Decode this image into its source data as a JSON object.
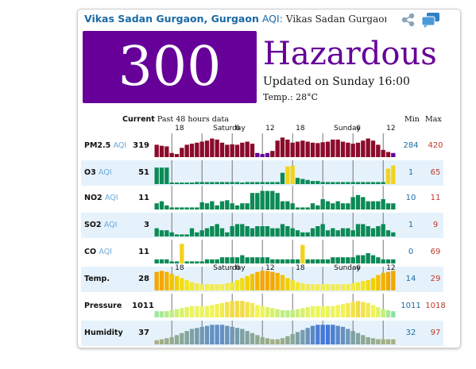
{
  "header": {
    "station": "Vikas Sadan Gurgaon, Gurgaon",
    "aqi_suffix": "AQI",
    "colon": ":",
    "subtitle": "Vikas Sadan Gurgaon, Gu"
  },
  "icons": {
    "share": "share-icon",
    "chat": "chat-icon"
  },
  "summary": {
    "aqi": "300",
    "level": "Hazardous",
    "updated": "Updated on Sunday 16:00",
    "temp_label": "Temp.:",
    "temp_value": "28°C",
    "aqi_color": "#660099"
  },
  "table_header": {
    "current": "Current",
    "past": "Past 48 hours data",
    "min": "Min",
    "max": "Max"
  },
  "time_axis": [
    "18",
    "Saturday",
    "6",
    "12",
    "18",
    "Sunday",
    "6",
    "12"
  ],
  "rows": [
    {
      "name": "PM2.5",
      "unit": "AQI",
      "current": "319",
      "min": "284",
      "max": "420",
      "values": [
        60,
        55,
        52,
        20,
        15,
        45,
        60,
        65,
        70,
        75,
        80,
        90,
        85,
        70,
        60,
        62,
        60,
        70,
        75,
        65,
        20,
        15,
        20,
        30,
        80,
        95,
        85,
        70,
        75,
        80,
        75,
        70,
        68,
        72,
        75,
        85,
        85,
        75,
        70,
        65,
        70,
        80,
        90,
        80,
        60,
        35,
        25,
        20
      ],
      "colors": [
        "#8b0a2a",
        "#8b0a2a",
        "#8b0a2a",
        "#8b0a2a",
        "#8b0a2a",
        "#8b0a2a",
        "#8b0a2a",
        "#8b0a2a",
        "#8b0a2a",
        "#8b0a2a",
        "#8b0a2a",
        "#8b0a2a",
        "#8b0a2a",
        "#8b0a2a",
        "#8b0a2a",
        "#8b0a2a",
        "#8b0a2a",
        "#8b0a2a",
        "#8b0a2a",
        "#8b0a2a",
        "#660099",
        "#660099",
        "#660099",
        "#8b0a2a",
        "#8b0a2a",
        "#8b0a2a",
        "#8b0a2a",
        "#8b0a2a",
        "#8b0a2a",
        "#8b0a2a",
        "#8b0a2a",
        "#8b0a2a",
        "#8b0a2a",
        "#8b0a2a",
        "#8b0a2a",
        "#8b0a2a",
        "#8b0a2a",
        "#8b0a2a",
        "#8b0a2a",
        "#8b0a2a",
        "#8b0a2a",
        "#8b0a2a",
        "#8b0a2a",
        "#8b0a2a",
        "#8b0a2a",
        "#8b0a2a",
        "#8b0a2a",
        "#660099"
      ]
    },
    {
      "name": "O3",
      "unit": "AQI",
      "current": "51",
      "min": "1",
      "max": "65",
      "values": [
        80,
        80,
        80,
        5,
        5,
        5,
        5,
        5,
        10,
        10,
        10,
        10,
        10,
        10,
        10,
        10,
        10,
        5,
        10,
        10,
        10,
        10,
        10,
        10,
        10,
        55,
        85,
        90,
        30,
        25,
        20,
        15,
        15,
        10,
        10,
        10,
        10,
        10,
        10,
        10,
        10,
        10,
        10,
        10,
        10,
        10,
        75,
        90
      ],
      "colors": [
        "#0b8a55",
        "#0b8a55",
        "#0b8a55",
        "#0b8a55",
        "#0b8a55",
        "#0b8a55",
        "#0b8a55",
        "#0b8a55",
        "#0b8a55",
        "#0b8a55",
        "#0b8a55",
        "#0b8a55",
        "#0b8a55",
        "#0b8a55",
        "#0b8a55",
        "#0b8a55",
        "#0b8a55",
        "#0b8a55",
        "#0b8a55",
        "#0b8a55",
        "#0b8a55",
        "#0b8a55",
        "#0b8a55",
        "#0b8a55",
        "#0b8a55",
        "#0b8a55",
        "#f2d31c",
        "#f2d31c",
        "#0b8a55",
        "#0b8a55",
        "#0b8a55",
        "#0b8a55",
        "#0b8a55",
        "#0b8a55",
        "#0b8a55",
        "#0b8a55",
        "#0b8a55",
        "#0b8a55",
        "#0b8a55",
        "#0b8a55",
        "#0b8a55",
        "#0b8a55",
        "#0b8a55",
        "#0b8a55",
        "#0b8a55",
        "#0b8a55",
        "#f2d31c",
        "#f2d31c"
      ]
    },
    {
      "name": "NO2",
      "unit": "AQI",
      "current": "11",
      "min": "10",
      "max": "11",
      "values": [
        30,
        40,
        20,
        10,
        10,
        10,
        10,
        10,
        10,
        35,
        30,
        40,
        20,
        40,
        45,
        30,
        20,
        30,
        30,
        80,
        80,
        90,
        90,
        90,
        80,
        40,
        40,
        30,
        10,
        10,
        10,
        30,
        20,
        50,
        40,
        30,
        40,
        30,
        30,
        60,
        70,
        60,
        40,
        40,
        40,
        50,
        30,
        30
      ],
      "colors": [
        "#0b8a55"
      ]
    },
    {
      "name": "SO2",
      "unit": "AQI",
      "current": "3",
      "min": "1",
      "max": "9",
      "values": [
        40,
        30,
        30,
        20,
        10,
        10,
        10,
        40,
        20,
        30,
        40,
        50,
        60,
        40,
        20,
        50,
        60,
        60,
        50,
        40,
        50,
        50,
        50,
        40,
        40,
        60,
        50,
        40,
        30,
        20,
        20,
        40,
        50,
        60,
        30,
        40,
        30,
        40,
        40,
        30,
        60,
        60,
        50,
        40,
        50,
        60,
        30,
        20
      ],
      "colors": [
        "#0b8a55"
      ]
    },
    {
      "name": "CO",
      "unit": "AQI",
      "current": "11",
      "min": "0",
      "max": "69",
      "values": [
        20,
        20,
        20,
        10,
        10,
        95,
        10,
        10,
        10,
        10,
        20,
        20,
        20,
        30,
        30,
        30,
        30,
        40,
        30,
        30,
        30,
        30,
        30,
        20,
        20,
        20,
        20,
        20,
        20,
        90,
        20,
        20,
        20,
        20,
        20,
        30,
        30,
        30,
        30,
        30,
        40,
        40,
        50,
        40,
        30,
        20,
        20,
        20
      ],
      "colors": [
        "#0b8a55",
        "#0b8a55",
        "#0b8a55",
        "#0b8a55",
        "#0b8a55",
        "#f2d31c",
        "#0b8a55",
        "#0b8a55",
        "#0b8a55",
        "#0b8a55",
        "#0b8a55",
        "#0b8a55",
        "#0b8a55",
        "#0b8a55",
        "#0b8a55",
        "#0b8a55",
        "#0b8a55",
        "#0b8a55",
        "#0b8a55",
        "#0b8a55",
        "#0b8a55",
        "#0b8a55",
        "#0b8a55",
        "#0b8a55",
        "#0b8a55",
        "#0b8a55",
        "#0b8a55",
        "#0b8a55",
        "#0b8a55",
        "#f2d31c",
        "#0b8a55",
        "#0b8a55",
        "#0b8a55",
        "#0b8a55",
        "#0b8a55",
        "#0b8a55",
        "#0b8a55",
        "#0b8a55",
        "#0b8a55",
        "#0b8a55",
        "#0b8a55",
        "#0b8a55",
        "#0b8a55",
        "#0b8a55",
        "#0b8a55",
        "#0b8a55",
        "#0b8a55",
        "#0b8a55"
      ]
    },
    {
      "name": "Temp.",
      "unit": "",
      "current": "28",
      "min": "14",
      "max": "29",
      "values": [
        90,
        95,
        90,
        80,
        70,
        60,
        50,
        40,
        35,
        30,
        30,
        30,
        30,
        30,
        35,
        40,
        50,
        60,
        70,
        80,
        90,
        95,
        95,
        90,
        85,
        75,
        60,
        50,
        40,
        35,
        30,
        30,
        30,
        30,
        30,
        30,
        30,
        30,
        30,
        35,
        40,
        45,
        50,
        60,
        75,
        85,
        90,
        95
      ],
      "colors": [
        "#f4a700",
        "#f4a700",
        "#f4b300",
        "#f4c200",
        "#f4d000",
        "#f2dc10",
        "#f2e420",
        "#f2e830",
        "#f2ea40",
        "#f2ec50",
        "#f2ec50",
        "#f2ec50",
        "#f2ec50",
        "#f2ec50",
        "#f2ea40",
        "#f2e830",
        "#f2e420",
        "#f2dc10",
        "#f4d000",
        "#f4c200",
        "#f4b300",
        "#f4a700",
        "#f4a700",
        "#f4a700",
        "#f4b300",
        "#f4c200",
        "#f4d000",
        "#f2e420",
        "#f2e830",
        "#f2ea40",
        "#f2ec50",
        "#f2ec50",
        "#f2ec50",
        "#f2ec50",
        "#f2ec50",
        "#f2ec50",
        "#f2ec50",
        "#f2ec50",
        "#f2ec50",
        "#f2ea40",
        "#f2e830",
        "#f2e420",
        "#f2dc10",
        "#f4d000",
        "#f4c200",
        "#f4b300",
        "#f4a700",
        "#f4a700"
      ]
    },
    {
      "name": "Pressure",
      "unit": "",
      "current": "1011",
      "min": "1011",
      "max": "1018",
      "values": [
        30,
        30,
        30,
        35,
        40,
        45,
        50,
        55,
        55,
        55,
        55,
        60,
        65,
        70,
        75,
        80,
        80,
        80,
        75,
        70,
        60,
        55,
        50,
        45,
        40,
        35,
        35,
        35,
        40,
        45,
        50,
        55,
        55,
        55,
        55,
        55,
        60,
        65,
        70,
        75,
        80,
        75,
        70,
        60,
        50,
        40,
        35,
        30
      ],
      "colors": [
        "#9de89b",
        "#a8ea92",
        "#b4ec8a",
        "#c0ee80",
        "#ccef76",
        "#d8f06c",
        "#e2f264",
        "#eaf45c",
        "#eaf45c",
        "#eaf45c",
        "#eaf45c",
        "#f0f458",
        "#f2f054",
        "#f2ea50",
        "#f2e24c",
        "#f2da48",
        "#f2da48",
        "#f2da48",
        "#f2e24c",
        "#f2ea50",
        "#f0f458",
        "#eaf45c",
        "#e2f264",
        "#d8f06c",
        "#ccef76",
        "#c0ee80",
        "#c0ee80",
        "#c0ee80",
        "#ccef76",
        "#d8f06c",
        "#e2f264",
        "#eaf45c",
        "#eaf45c",
        "#eaf45c",
        "#eaf45c",
        "#eaf45c",
        "#f0f458",
        "#f2f054",
        "#f2ea50",
        "#f2e24c",
        "#f2da48",
        "#f2e24c",
        "#f2ea50",
        "#f0f458",
        "#e2f264",
        "#c0ee80",
        "#a8ea92",
        "#88e4a4"
      ]
    },
    {
      "name": "Humidity",
      "unit": "",
      "current": "37",
      "min": "32",
      "max": "97",
      "values": [
        20,
        25,
        30,
        35,
        45,
        55,
        65,
        75,
        80,
        85,
        90,
        95,
        95,
        95,
        90,
        85,
        80,
        75,
        65,
        55,
        45,
        35,
        30,
        25,
        25,
        30,
        40,
        50,
        60,
        70,
        80,
        90,
        95,
        95,
        95,
        95,
        90,
        85,
        75,
        65,
        55,
        45,
        35,
        30,
        25,
        25,
        25,
        25
      ],
      "colors": [
        "#a6b080",
        "#a2b084",
        "#9cae88",
        "#96ac8c",
        "#90aa92",
        "#8aa898",
        "#84a49e",
        "#7ea0a6",
        "#789cae",
        "#7098b4",
        "#6a94bc",
        "#6490c4",
        "#6490c4",
        "#6490c4",
        "#6a94bc",
        "#7098b4",
        "#789cae",
        "#7ea0a6",
        "#84a49e",
        "#8aa898",
        "#90aa92",
        "#96ac8c",
        "#9cae88",
        "#a2b084",
        "#a2b084",
        "#9cae88",
        "#90aa92",
        "#8aa898",
        "#7ea0a6",
        "#789cae",
        "#6a94bc",
        "#5a88ca",
        "#4c7ed2",
        "#4478d8",
        "#4478d8",
        "#4c7ed2",
        "#5a88ca",
        "#6490c4",
        "#7098b4",
        "#7ea0a6",
        "#84a49e",
        "#8aa898",
        "#90aa92",
        "#96ac8c",
        "#9cae88",
        "#a2b084",
        "#a6b080",
        "#a6b080"
      ]
    }
  ]
}
